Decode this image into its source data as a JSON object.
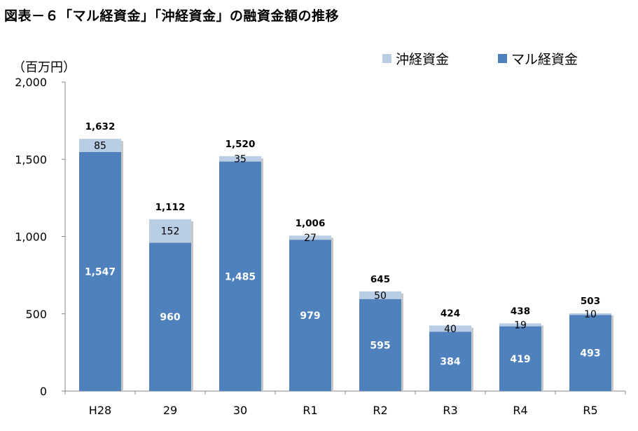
{
  "title": "図表－６「マル経資金」「沖経資金」の融資金額の推移",
  "colors": {
    "maru": "#4f81bd",
    "oki": "#b9cde5",
    "axis": "#868686"
  },
  "chart_data": {
    "type": "bar",
    "stacked": true,
    "unit_label": "（百万円）",
    "categories": [
      "H28",
      "29",
      "30",
      "R1",
      "R2",
      "R3",
      "R4",
      "R5"
    ],
    "series": [
      {
        "name": "マル経資金",
        "values": [
          1547,
          960,
          1485,
          979,
          595,
          384,
          419,
          493
        ]
      },
      {
        "name": "沖経資金",
        "values": [
          85,
          152,
          35,
          27,
          50,
          40,
          19,
          10
        ]
      }
    ],
    "totals": [
      "1,632",
      "1,112",
      "1,520",
      "1,006",
      "645",
      "424",
      "438",
      "503"
    ],
    "main_labels": [
      "1,547",
      "960",
      "1,485",
      "979",
      "595",
      "384",
      "419",
      "493"
    ],
    "oki_labels": [
      "85",
      "152",
      "35",
      "27",
      "50",
      "40",
      "19",
      "10"
    ],
    "y_ticks": [
      0,
      500,
      1000,
      1500,
      2000
    ],
    "y_tick_labels": [
      "0",
      "500",
      "1,000",
      "1,500",
      "2,000"
    ],
    "ylim": [
      0,
      2000
    ],
    "legend": [
      "沖経資金",
      "マル経資金"
    ],
    "legend_position": "top-right",
    "grid": false
  }
}
